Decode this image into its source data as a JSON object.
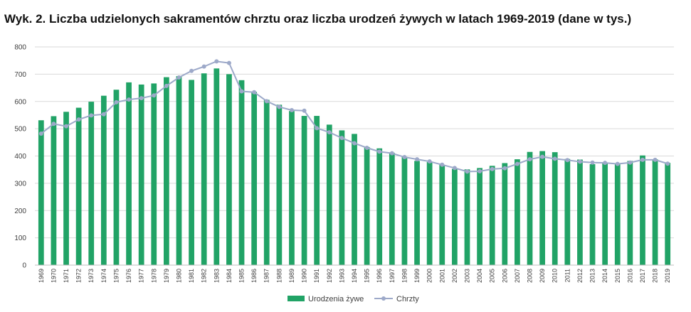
{
  "chart_data": {
    "type": "bar",
    "title": "Wyk. 2. Liczba udzielonych sakramentów chrztu oraz liczba urodzeń żywych w latach 1969-2019 (dane w tys.)",
    "xlabel": "",
    "ylabel": "",
    "ylim": [
      0,
      800
    ],
    "yticks": [
      0,
      100,
      200,
      300,
      400,
      500,
      600,
      700,
      800
    ],
    "grid": true,
    "legend_position": "bottom",
    "categories": [
      "1969",
      "1970",
      "1971",
      "1972",
      "1973",
      "1974",
      "1975",
      "1976",
      "1977",
      "1978",
      "1979",
      "1980",
      "1981",
      "1982",
      "1983",
      "1984",
      "1985",
      "1986",
      "1987",
      "1988",
      "1989",
      "1990",
      "1991",
      "1992",
      "1993",
      "1994",
      "1995",
      "1996",
      "1997",
      "1998",
      "1999",
      "2000",
      "2001",
      "2002",
      "2003",
      "2004",
      "2005",
      "2006",
      "2007",
      "2008",
      "2009",
      "2010",
      "2011",
      "2012",
      "2013",
      "2014",
      "2015",
      "2016",
      "2017",
      "2018",
      "2019"
    ],
    "series": [
      {
        "name": "Urodzenia żywe",
        "type": "bar",
        "color": "#21a366",
        "values": [
          531,
          546,
          562,
          577,
          599,
          621,
          643,
          670,
          662,
          666,
          689,
          693,
          679,
          703,
          721,
          700,
          678,
          635,
          606,
          588,
          565,
          547,
          547,
          515,
          494,
          481,
          433,
          428,
          412,
          396,
          382,
          378,
          368,
          353,
          351,
          356,
          364,
          374,
          388,
          415,
          418,
          414,
          389,
          387,
          370,
          376,
          370,
          382,
          402,
          388,
          375
        ]
      },
      {
        "name": "Chrzty",
        "type": "line",
        "color": "#9da9c9",
        "values": [
          482,
          518,
          509,
          534,
          549,
          553,
          597,
          607,
          612,
          622,
          657,
          688,
          712,
          728,
          747,
          741,
          637,
          634,
          601,
          580,
          568,
          566,
          502,
          487,
          466,
          447,
          430,
          416,
          410,
          396,
          388,
          380,
          368,
          356,
          343,
          344,
          352,
          355,
          371,
          388,
          397,
          390,
          385,
          379,
          376,
          375,
          371,
          376,
          386,
          386,
          372
        ]
      }
    ]
  }
}
